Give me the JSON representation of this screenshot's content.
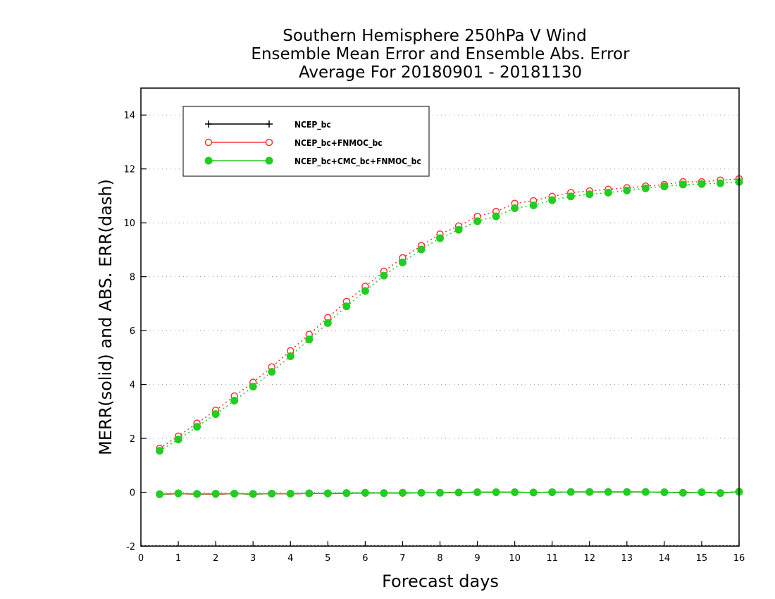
{
  "chart_data": {
    "type": "line",
    "title_lines": [
      "Southern Hemisphere 250hPa V Wind",
      "Ensemble Mean Error and Ensemble Abs. Error",
      "Average For 20180901 - 20181130"
    ],
    "xlabel": "Forecast days",
    "ylabel": "MERR(solid) and ABS. ERR(dash)",
    "xlim": [
      0,
      16
    ],
    "ylim": [
      -2,
      15
    ],
    "x_ticks": [
      0,
      1,
      2,
      3,
      4,
      5,
      6,
      7,
      8,
      9,
      10,
      11,
      12,
      13,
      14,
      15,
      16
    ],
    "y_ticks": [
      -2,
      0,
      2,
      4,
      6,
      8,
      10,
      12,
      14
    ],
    "grid": true,
    "legend_position": "top-left",
    "x": [
      0.5,
      1,
      1.5,
      2,
      2.5,
      3,
      3.5,
      4,
      4.5,
      5,
      5.5,
      6,
      6.5,
      7,
      7.5,
      8,
      8.5,
      9,
      9.5,
      10,
      10.5,
      11,
      11.5,
      12,
      12.5,
      13,
      13.5,
      14,
      14.5,
      15,
      15.5,
      16
    ],
    "series": [
      {
        "name": "NCEP_bc",
        "color": "#000000",
        "marker": "plus",
        "mean_error": [
          -0.08,
          -0.05,
          -0.07,
          -0.07,
          -0.05,
          -0.07,
          -0.05,
          -0.06,
          -0.04,
          -0.05,
          -0.04,
          -0.03,
          -0.03,
          -0.03,
          -0.02,
          -0.02,
          -0.01,
          0.0,
          0.0,
          0.0,
          -0.01,
          0.0,
          0.01,
          0.01,
          0.01,
          0.01,
          0.01,
          0.0,
          -0.02,
          0.0,
          -0.03,
          0.02
        ],
        "abs_error": null
      },
      {
        "name": "NCEP_bc+FNMOC_bc",
        "color": "#ff3333",
        "marker": "open-circle",
        "mean_error": [
          -0.08,
          -0.05,
          -0.07,
          -0.07,
          -0.05,
          -0.07,
          -0.05,
          -0.06,
          -0.04,
          -0.05,
          -0.04,
          -0.03,
          -0.03,
          -0.03,
          -0.02,
          -0.02,
          -0.01,
          0.0,
          0.0,
          0.0,
          -0.01,
          0.0,
          0.01,
          0.01,
          0.01,
          0.01,
          0.01,
          0.0,
          -0.02,
          0.0,
          -0.03,
          0.02
        ],
        "abs_error": [
          1.63,
          2.08,
          2.56,
          3.04,
          3.57,
          4.08,
          4.65,
          5.25,
          5.86,
          6.48,
          7.08,
          7.64,
          8.2,
          8.7,
          9.15,
          9.58,
          9.88,
          10.24,
          10.42,
          10.72,
          10.82,
          10.98,
          11.12,
          11.18,
          11.24,
          11.3,
          11.36,
          11.42,
          11.52,
          11.52,
          11.58,
          11.63
        ]
      },
      {
        "name": "NCEP_bc+CMC_bc+FNMOC_bc",
        "color": "#22cc22",
        "marker": "filled-circle",
        "mean_error": [
          -0.07,
          -0.04,
          -0.06,
          -0.05,
          -0.05,
          -0.06,
          -0.05,
          -0.05,
          -0.04,
          -0.04,
          -0.03,
          -0.02,
          -0.03,
          -0.02,
          -0.02,
          -0.02,
          -0.01,
          0.0,
          0.0,
          0.0,
          -0.01,
          0.0,
          0.01,
          0.01,
          0.01,
          0.01,
          0.01,
          0.0,
          -0.02,
          0.0,
          -0.03,
          0.02
        ],
        "abs_error": [
          1.54,
          1.96,
          2.43,
          2.9,
          3.4,
          3.92,
          4.47,
          5.05,
          5.67,
          6.28,
          6.9,
          7.47,
          8.04,
          8.53,
          9.01,
          9.43,
          9.74,
          10.06,
          10.24,
          10.54,
          10.65,
          10.84,
          10.98,
          11.06,
          11.12,
          11.2,
          11.28,
          11.35,
          11.42,
          11.44,
          11.47,
          11.52
        ]
      }
    ]
  }
}
